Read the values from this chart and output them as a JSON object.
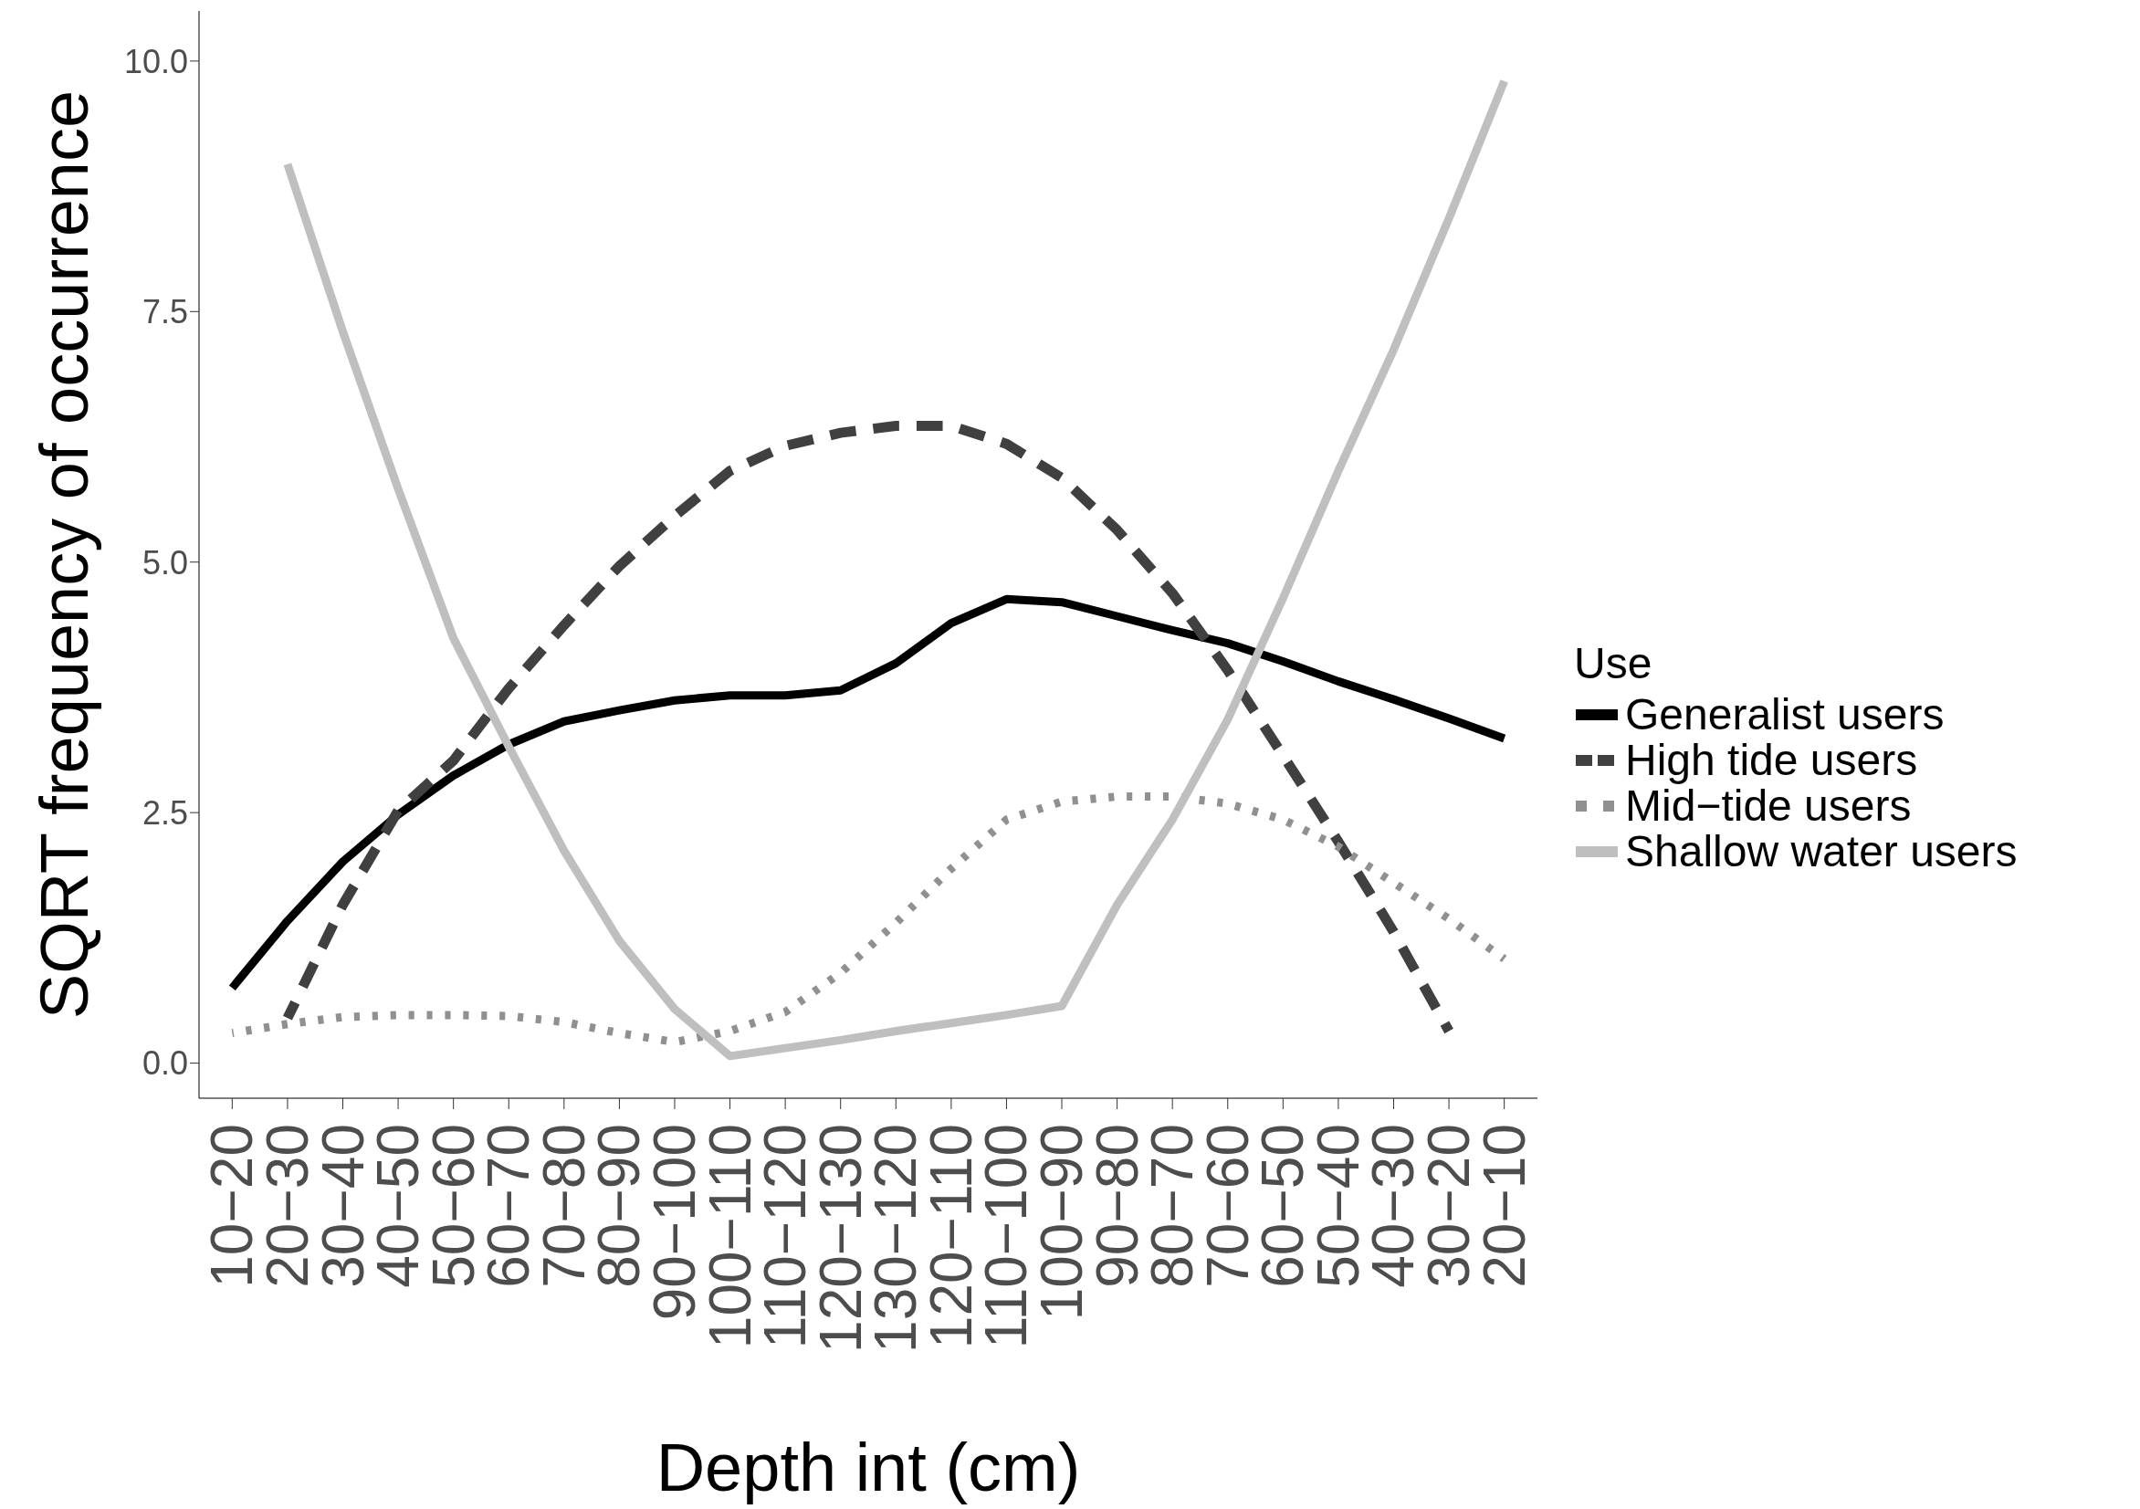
{
  "chart_data": {
    "type": "line",
    "xlabel": "Depth int (cm)",
    "ylabel": "SQRT frequency of occurrence",
    "legend_title": "Use",
    "legend": "right",
    "grid": false,
    "categories": [
      "10−20",
      "20−30",
      "30−40",
      "40−50",
      "50−60",
      "60−70",
      "70−80",
      "80−90",
      "90−100",
      "100−110",
      "110−120",
      "120−130",
      "130−120",
      "120−110",
      "110−100",
      "100−90",
      "90−80",
      "80−70",
      "70−60",
      "60−50",
      "50−40",
      "40−30",
      "30−20",
      "20−10"
    ],
    "ylim": [
      -0.35,
      10.5
    ],
    "yticks": [
      {
        "value": 0,
        "label": "0.0"
      },
      {
        "value": 2.5,
        "label": "2.5"
      },
      {
        "value": 5,
        "label": "5.0"
      },
      {
        "value": 7.5,
        "label": "7.5"
      },
      {
        "value": 10,
        "label": "10.0"
      }
    ],
    "series": [
      {
        "name": "Generalist users",
        "color": "#000000",
        "line_style": "solid",
        "values": [
          0.75,
          1.42,
          2.01,
          2.48,
          2.87,
          3.18,
          3.41,
          3.52,
          3.62,
          3.67,
          3.67,
          3.72,
          3.99,
          4.39,
          4.63,
          4.6,
          4.46,
          4.32,
          4.19,
          4.01,
          3.81,
          3.63,
          3.44,
          3.24
        ]
      },
      {
        "name": "High tide users",
        "color": "#404040",
        "line_style": "dashed",
        "values": [
          null,
          0.45,
          1.58,
          2.52,
          3.02,
          3.74,
          4.37,
          4.96,
          5.46,
          5.91,
          6.16,
          6.29,
          6.36,
          6.36,
          6.18,
          5.84,
          5.32,
          4.69,
          3.92,
          3.07,
          2.21,
          1.31,
          0.32,
          null
        ]
      },
      {
        "name": "Mid−tide users",
        "color": "#909090",
        "line_style": "dotted",
        "values": [
          0.3,
          0.39,
          0.46,
          0.48,
          0.48,
          0.47,
          0.41,
          0.3,
          0.21,
          0.32,
          0.51,
          0.9,
          1.4,
          1.94,
          2.43,
          2.61,
          2.66,
          2.66,
          2.59,
          2.43,
          2.16,
          1.8,
          1.44,
          1.04
        ]
      },
      {
        "name": "Shallow water users",
        "color": "#bfbfbf",
        "line_style": "solid",
        "values": [
          null,
          8.97,
          7.3,
          5.73,
          4.24,
          3.16,
          2.12,
          1.22,
          0.54,
          0.07,
          0.15,
          0.23,
          0.32,
          0.4,
          0.48,
          0.57,
          1.58,
          2.43,
          3.43,
          4.64,
          5.91,
          7.12,
          8.43,
          9.8
        ]
      }
    ]
  }
}
